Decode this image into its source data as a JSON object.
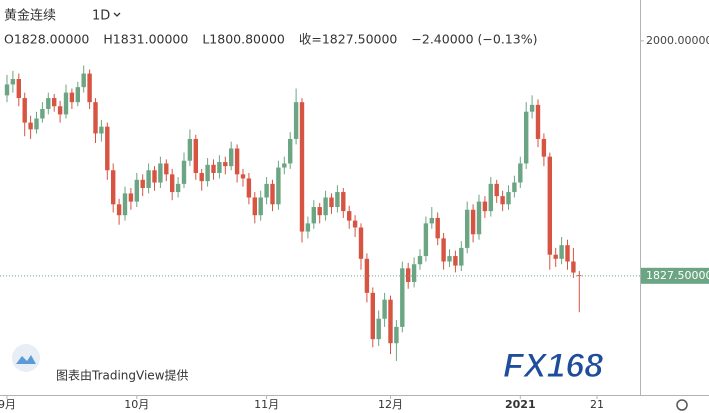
{
  "chart_data": {
    "type": "candlestick",
    "title": "黄金连续",
    "interval": "1D",
    "header_items": [
      "O1828.00000",
      "H1831.00000",
      "L1800.80000",
      "收=1827.50000",
      "−2.40000 (−0.13%)"
    ],
    "up_color": "#6ba583",
    "down_color": "#d75442",
    "categories": [
      "9月",
      null,
      null,
      null,
      null,
      null,
      null,
      null,
      null,
      null,
      null,
      null,
      null,
      null,
      null,
      null,
      null,
      null,
      null,
      null,
      null,
      null,
      "10月",
      null,
      null,
      null,
      null,
      null,
      null,
      null,
      null,
      null,
      null,
      null,
      null,
      null,
      null,
      null,
      null,
      null,
      null,
      null,
      null,
      null,
      "11月",
      null,
      null,
      null,
      null,
      null,
      null,
      null,
      null,
      null,
      null,
      null,
      null,
      null,
      null,
      null,
      null,
      null,
      null,
      null,
      null,
      "12月",
      null,
      null,
      null,
      null,
      null,
      null,
      null,
      null,
      null,
      null,
      null,
      null,
      null,
      null,
      null,
      null,
      null,
      null,
      null,
      null,
      null,
      "2021",
      null,
      null,
      null,
      null,
      null,
      null,
      null,
      null,
      null,
      null,
      null,
      null,
      "21"
    ],
    "candles": [
      [
        1960,
        1975,
        1955,
        1968
      ],
      [
        1968,
        1978,
        1962,
        1972
      ],
      [
        1972,
        1976,
        1952,
        1958
      ],
      [
        1958,
        1962,
        1930,
        1940
      ],
      [
        1940,
        1945,
        1928,
        1935
      ],
      [
        1935,
        1948,
        1932,
        1943
      ],
      [
        1943,
        1955,
        1940,
        1950
      ],
      [
        1950,
        1962,
        1946,
        1958
      ],
      [
        1958,
        1961,
        1948,
        1952
      ],
      [
        1952,
        1956,
        1940,
        1946
      ],
      [
        1946,
        1968,
        1943,
        1962
      ],
      [
        1962,
        1965,
        1950,
        1955
      ],
      [
        1955,
        1970,
        1952,
        1966
      ],
      [
        1966,
        1982,
        1962,
        1976
      ],
      [
        1976,
        1979,
        1950,
        1955
      ],
      [
        1955,
        1958,
        1925,
        1932
      ],
      [
        1932,
        1942,
        1926,
        1937
      ],
      [
        1937,
        1940,
        1898,
        1905
      ],
      [
        1905,
        1910,
        1874,
        1880
      ],
      [
        1880,
        1884,
        1865,
        1872
      ],
      [
        1872,
        1893,
        1868,
        1888
      ],
      [
        1888,
        1892,
        1876,
        1882
      ],
      [
        1882,
        1903,
        1878,
        1898
      ],
      [
        1898,
        1902,
        1886,
        1892
      ],
      [
        1892,
        1910,
        1888,
        1905
      ],
      [
        1905,
        1908,
        1890,
        1896
      ],
      [
        1896,
        1915,
        1892,
        1910
      ],
      [
        1910,
        1913,
        1897,
        1902
      ],
      [
        1902,
        1906,
        1883,
        1889
      ],
      [
        1889,
        1900,
        1885,
        1895
      ],
      [
        1895,
        1918,
        1892,
        1912
      ],
      [
        1912,
        1935,
        1908,
        1928
      ],
      [
        1928,
        1931,
        1898,
        1903
      ],
      [
        1903,
        1906,
        1890,
        1897
      ],
      [
        1897,
        1914,
        1893,
        1909
      ],
      [
        1909,
        1913,
        1898,
        1903
      ],
      [
        1903,
        1916,
        1899,
        1911
      ],
      [
        1911,
        1915,
        1902,
        1908
      ],
      [
        1908,
        1926,
        1905,
        1921
      ],
      [
        1921,
        1924,
        1896,
        1902
      ],
      [
        1902,
        1906,
        1893,
        1899
      ],
      [
        1899,
        1903,
        1880,
        1885
      ],
      [
        1885,
        1889,
        1866,
        1872
      ],
      [
        1872,
        1890,
        1868,
        1885
      ],
      [
        1885,
        1900,
        1880,
        1895
      ],
      [
        1895,
        1898,
        1875,
        1880
      ],
      [
        1880,
        1912,
        1876,
        1907
      ],
      [
        1907,
        1915,
        1902,
        1910
      ],
      [
        1910,
        1933,
        1906,
        1928
      ],
      [
        1928,
        1965,
        1924,
        1955
      ],
      [
        1955,
        1958,
        1852,
        1860
      ],
      [
        1860,
        1871,
        1855,
        1866
      ],
      [
        1866,
        1883,
        1862,
        1878
      ],
      [
        1878,
        1881,
        1866,
        1872
      ],
      [
        1872,
        1890,
        1868,
        1885
      ],
      [
        1885,
        1888,
        1873,
        1878
      ],
      [
        1878,
        1894,
        1874,
        1889
      ],
      [
        1889,
        1892,
        1870,
        1875
      ],
      [
        1875,
        1879,
        1862,
        1868
      ],
      [
        1868,
        1872,
        1856,
        1863
      ],
      [
        1863,
        1866,
        1832,
        1840
      ],
      [
        1840,
        1844,
        1808,
        1815
      ],
      [
        1815,
        1819,
        1775,
        1781
      ],
      [
        1781,
        1802,
        1776,
        1796
      ],
      [
        1796,
        1815,
        1790,
        1810
      ],
      [
        1810,
        1813,
        1770,
        1778
      ],
      [
        1778,
        1795,
        1765,
        1790
      ],
      [
        1790,
        1838,
        1786,
        1833
      ],
      [
        1833,
        1837,
        1818,
        1823
      ],
      [
        1823,
        1841,
        1819,
        1836
      ],
      [
        1836,
        1847,
        1832,
        1842
      ],
      [
        1842,
        1871,
        1838,
        1866
      ],
      [
        1866,
        1878,
        1862,
        1870
      ],
      [
        1870,
        1874,
        1850,
        1855
      ],
      [
        1855,
        1859,
        1832,
        1838
      ],
      [
        1838,
        1847,
        1834,
        1842
      ],
      [
        1842,
        1846,
        1830,
        1835
      ],
      [
        1835,
        1853,
        1831,
        1848
      ],
      [
        1848,
        1882,
        1844,
        1876
      ],
      [
        1876,
        1880,
        1852,
        1858
      ],
      [
        1858,
        1887,
        1854,
        1882
      ],
      [
        1882,
        1886,
        1870,
        1875
      ],
      [
        1875,
        1900,
        1871,
        1895
      ],
      [
        1895,
        1898,
        1881,
        1886
      ],
      [
        1886,
        1890,
        1875,
        1880
      ],
      [
        1880,
        1894,
        1876,
        1889
      ],
      [
        1889,
        1901,
        1885,
        1896
      ],
      [
        1896,
        1915,
        1892,
        1910
      ],
      [
        1910,
        1955,
        1906,
        1948
      ],
      [
        1948,
        1960,
        1943,
        1953
      ],
      [
        1953,
        1957,
        1922,
        1928
      ],
      [
        1928,
        1932,
        1908,
        1915
      ],
      [
        1915,
        1918,
        1832,
        1843
      ],
      [
        1843,
        1848,
        1834,
        1840
      ],
      [
        1840,
        1856,
        1836,
        1850
      ],
      [
        1850,
        1854,
        1832,
        1838
      ],
      [
        1838,
        1848,
        1826,
        1829.9
      ],
      [
        1828,
        1831,
        1800.8,
        1827.5
      ],
      null,
      null,
      null
    ],
    "ylim": [
      1740,
      2030
    ],
    "yticks": [
      {
        "value": 2000,
        "label": "2000.00000"
      }
    ],
    "last_price": {
      "value": 1827.5,
      "label": "1827.50000"
    },
    "attribution": "图表由TradingView提供",
    "watermark": "FX168"
  }
}
